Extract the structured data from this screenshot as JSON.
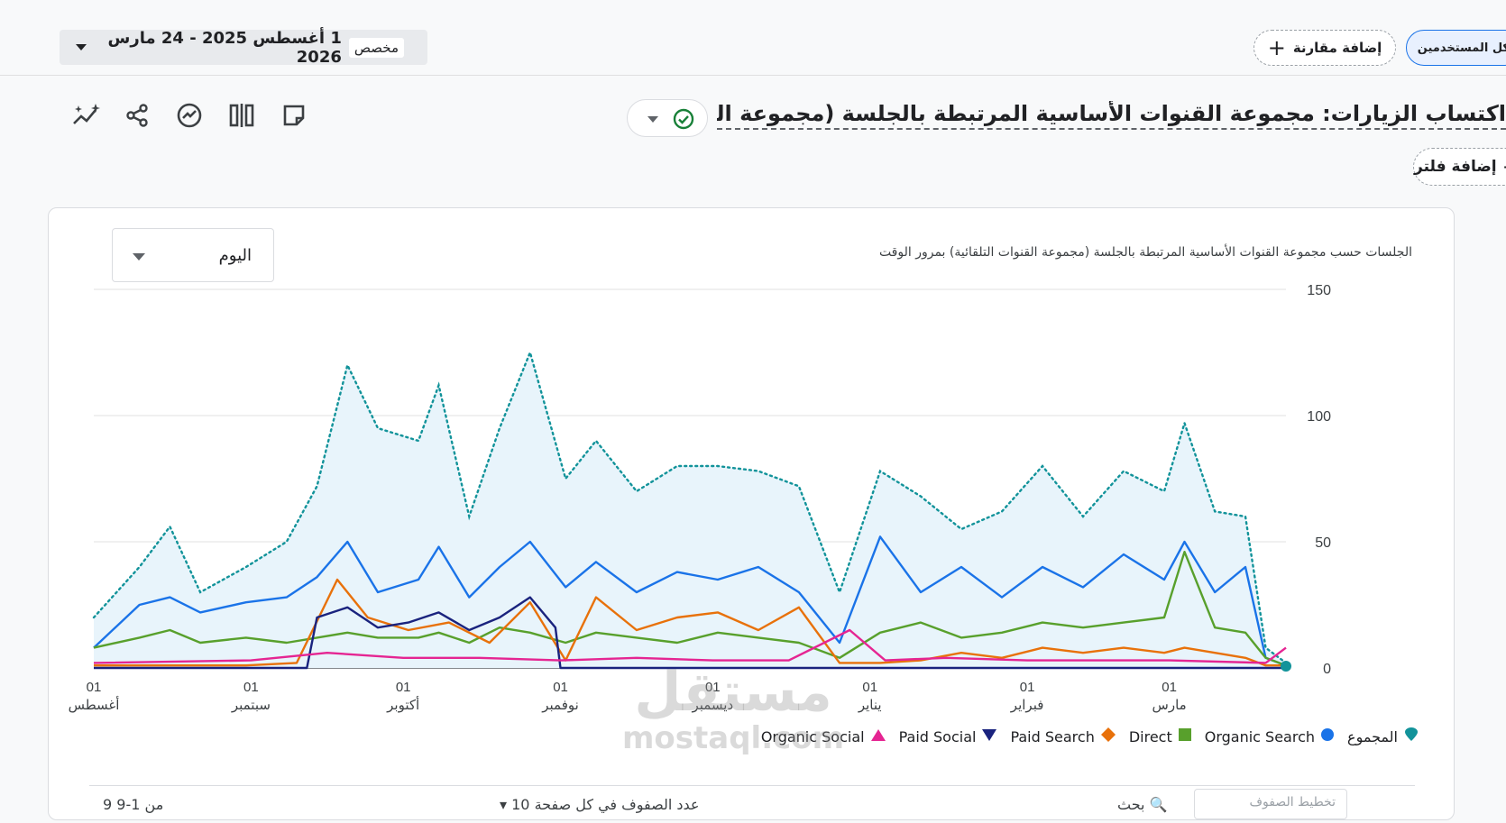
{
  "header": {
    "date_custom": "مخصص",
    "date_range": "1 أغسطس 2025 - 24 مارس 2026",
    "compare_label": "إضافة مقارنة",
    "audience_label": "كل المستخدمين"
  },
  "page": {
    "title": "اكتساب الزيارات: مجموعة القنوات الأساسية المرتبطة بالجلسة (مجموعة القنوات التلقائية)",
    "add_filter_label": "إضافة فلتر"
  },
  "chart_panel": {
    "granularity": "اليوم",
    "title": "الجلسات حسب مجموعة القنوات الأساسية المرتبطة بالجلسة (مجموعة القنوات التلقائية) بمرور الوقت"
  },
  "chart_data": {
    "type": "line",
    "title": "الجلسات حسب مجموعة القنوات الأساسية المرتبطة بالجلسة (مجموعة القنوات التلقائية) بمرور الوقت",
    "ylim": [
      0,
      150
    ],
    "y_ticks": [
      "0",
      "50",
      "100",
      "150"
    ],
    "x_ticks": [
      {
        "day": "01",
        "month": "أغسطس",
        "date": "2025-08-01"
      },
      {
        "day": "01",
        "month": "سبتمبر",
        "date": "2025-09-01"
      },
      {
        "day": "01",
        "month": "أكتوبر",
        "date": "2025-10-01"
      },
      {
        "day": "01",
        "month": "نوفمبر",
        "date": "2025-11-01"
      },
      {
        "day": "01",
        "month": "ديسمبر",
        "date": "2025-12-01"
      },
      {
        "day": "01",
        "month": "يناير",
        "date": "2026-01-01"
      },
      {
        "day": "01",
        "month": "فبراير",
        "date": "2026-02-01"
      },
      {
        "day": "01",
        "month": "مارس",
        "date": "2026-03-01"
      }
    ],
    "x_range": [
      "2025-08-01",
      "2026-03-24"
    ],
    "grid": true,
    "legend_position": "bottom",
    "series": [
      {
        "name": "المجموع",
        "color": "#12939a",
        "style": "dotted-area",
        "points": [
          [
            "2025-08-01",
            20
          ],
          [
            "2025-08-10",
            40
          ],
          [
            "2025-08-16",
            56
          ],
          [
            "2025-08-22",
            30
          ],
          [
            "2025-08-31",
            40
          ],
          [
            "2025-09-08",
            50
          ],
          [
            "2025-09-14",
            72
          ],
          [
            "2025-09-20",
            120
          ],
          [
            "2025-09-26",
            95
          ],
          [
            "2025-10-04",
            90
          ],
          [
            "2025-10-08",
            112
          ],
          [
            "2025-10-14",
            60
          ],
          [
            "2025-10-20",
            95
          ],
          [
            "2025-10-26",
            125
          ],
          [
            "2025-11-02",
            75
          ],
          [
            "2025-11-08",
            90
          ],
          [
            "2025-11-16",
            70
          ],
          [
            "2025-11-24",
            80
          ],
          [
            "2025-12-02",
            80
          ],
          [
            "2025-12-10",
            78
          ],
          [
            "2025-12-18",
            72
          ],
          [
            "2025-12-26",
            30
          ],
          [
            "2026-01-03",
            78
          ],
          [
            "2026-01-11",
            68
          ],
          [
            "2026-01-19",
            55
          ],
          [
            "2026-01-27",
            62
          ],
          [
            "2026-02-04",
            80
          ],
          [
            "2026-02-12",
            60
          ],
          [
            "2026-02-20",
            78
          ],
          [
            "2026-02-28",
            70
          ],
          [
            "2026-03-04",
            97
          ],
          [
            "2026-03-10",
            62
          ],
          [
            "2026-03-16",
            60
          ],
          [
            "2026-03-20",
            8
          ],
          [
            "2026-03-24",
            2
          ]
        ]
      },
      {
        "name": "Organic Search",
        "color": "#1a73e8",
        "style": "solid",
        "points": [
          [
            "2025-08-01",
            8
          ],
          [
            "2025-08-10",
            25
          ],
          [
            "2025-08-16",
            28
          ],
          [
            "2025-08-22",
            22
          ],
          [
            "2025-08-31",
            26
          ],
          [
            "2025-09-08",
            28
          ],
          [
            "2025-09-14",
            36
          ],
          [
            "2025-09-20",
            50
          ],
          [
            "2025-09-26",
            30
          ],
          [
            "2025-10-04",
            35
          ],
          [
            "2025-10-08",
            48
          ],
          [
            "2025-10-14",
            28
          ],
          [
            "2025-10-20",
            40
          ],
          [
            "2025-10-26",
            50
          ],
          [
            "2025-11-02",
            32
          ],
          [
            "2025-11-08",
            42
          ],
          [
            "2025-11-16",
            30
          ],
          [
            "2025-11-24",
            38
          ],
          [
            "2025-12-02",
            35
          ],
          [
            "2025-12-10",
            40
          ],
          [
            "2025-12-18",
            30
          ],
          [
            "2025-12-26",
            10
          ],
          [
            "2026-01-03",
            52
          ],
          [
            "2026-01-11",
            30
          ],
          [
            "2026-01-19",
            40
          ],
          [
            "2026-01-27",
            28
          ],
          [
            "2026-02-04",
            40
          ],
          [
            "2026-02-12",
            32
          ],
          [
            "2026-02-20",
            45
          ],
          [
            "2026-02-28",
            35
          ],
          [
            "2026-03-04",
            50
          ],
          [
            "2026-03-10",
            30
          ],
          [
            "2026-03-16",
            40
          ],
          [
            "2026-03-20",
            4
          ],
          [
            "2026-03-24",
            1
          ]
        ]
      },
      {
        "name": "Direct",
        "color": "#58a02c",
        "style": "solid",
        "points": [
          [
            "2025-08-01",
            8
          ],
          [
            "2025-08-10",
            12
          ],
          [
            "2025-08-16",
            15
          ],
          [
            "2025-08-22",
            10
          ],
          [
            "2025-08-31",
            12
          ],
          [
            "2025-09-08",
            10
          ],
          [
            "2025-09-14",
            12
          ],
          [
            "2025-09-20",
            14
          ],
          [
            "2025-09-26",
            12
          ],
          [
            "2025-10-04",
            12
          ],
          [
            "2025-10-08",
            14
          ],
          [
            "2025-10-14",
            10
          ],
          [
            "2025-10-20",
            16
          ],
          [
            "2025-10-26",
            14
          ],
          [
            "2025-11-02",
            10
          ],
          [
            "2025-11-08",
            14
          ],
          [
            "2025-11-16",
            12
          ],
          [
            "2025-11-24",
            10
          ],
          [
            "2025-12-02",
            14
          ],
          [
            "2025-12-10",
            12
          ],
          [
            "2025-12-18",
            10
          ],
          [
            "2025-12-26",
            4
          ],
          [
            "2026-01-03",
            14
          ],
          [
            "2026-01-11",
            18
          ],
          [
            "2026-01-19",
            12
          ],
          [
            "2026-01-27",
            14
          ],
          [
            "2026-02-04",
            18
          ],
          [
            "2026-02-12",
            16
          ],
          [
            "2026-02-20",
            18
          ],
          [
            "2026-02-28",
            20
          ],
          [
            "2026-03-04",
            46
          ],
          [
            "2026-03-10",
            16
          ],
          [
            "2026-03-16",
            14
          ],
          [
            "2026-03-20",
            4
          ],
          [
            "2026-03-24",
            1
          ]
        ]
      },
      {
        "name": "Paid Search",
        "color": "#e8710a",
        "style": "solid",
        "points": [
          [
            "2025-08-01",
            1
          ],
          [
            "2025-08-31",
            1
          ],
          [
            "2025-09-10",
            2
          ],
          [
            "2025-09-18",
            35
          ],
          [
            "2025-09-24",
            20
          ],
          [
            "2025-10-02",
            15
          ],
          [
            "2025-10-10",
            18
          ],
          [
            "2025-10-18",
            10
          ],
          [
            "2025-10-26",
            26
          ],
          [
            "2025-11-02",
            3
          ],
          [
            "2025-11-08",
            28
          ],
          [
            "2025-11-16",
            15
          ],
          [
            "2025-11-24",
            20
          ],
          [
            "2025-12-02",
            22
          ],
          [
            "2025-12-10",
            15
          ],
          [
            "2025-12-18",
            24
          ],
          [
            "2025-12-26",
            2
          ],
          [
            "2026-01-03",
            2
          ],
          [
            "2026-01-11",
            3
          ],
          [
            "2026-01-19",
            6
          ],
          [
            "2026-01-27",
            4
          ],
          [
            "2026-02-04",
            8
          ],
          [
            "2026-02-12",
            6
          ],
          [
            "2026-02-20",
            8
          ],
          [
            "2026-02-28",
            6
          ],
          [
            "2026-03-04",
            8
          ],
          [
            "2026-03-10",
            6
          ],
          [
            "2026-03-16",
            4
          ],
          [
            "2026-03-20",
            1
          ],
          [
            "2026-03-24",
            1
          ]
        ]
      },
      {
        "name": "Paid Social",
        "color": "#1a237e",
        "style": "solid",
        "points": [
          [
            "2025-08-01",
            0
          ],
          [
            "2025-09-12",
            0
          ],
          [
            "2025-09-14",
            20
          ],
          [
            "2025-09-20",
            24
          ],
          [
            "2025-09-26",
            16
          ],
          [
            "2025-10-02",
            18
          ],
          [
            "2025-10-08",
            22
          ],
          [
            "2025-10-14",
            15
          ],
          [
            "2025-10-20",
            20
          ],
          [
            "2025-10-26",
            28
          ],
          [
            "2025-10-31",
            16
          ],
          [
            "2025-11-01",
            0
          ],
          [
            "2026-03-24",
            0
          ]
        ]
      },
      {
        "name": "Organic Social",
        "color": "#e52592",
        "style": "solid",
        "points": [
          [
            "2025-08-01",
            2
          ],
          [
            "2025-09-01",
            3
          ],
          [
            "2025-09-16",
            6
          ],
          [
            "2025-10-01",
            4
          ],
          [
            "2025-10-16",
            4
          ],
          [
            "2025-11-01",
            3
          ],
          [
            "2025-11-16",
            4
          ],
          [
            "2025-12-01",
            3
          ],
          [
            "2025-12-16",
            3
          ],
          [
            "2025-12-28",
            15
          ],
          [
            "2026-01-04",
            3
          ],
          [
            "2026-01-16",
            4
          ],
          [
            "2026-02-01",
            3
          ],
          [
            "2026-02-16",
            3
          ],
          [
            "2026-03-01",
            3
          ],
          [
            "2026-03-20",
            2
          ],
          [
            "2026-03-24",
            8
          ]
        ]
      }
    ]
  },
  "legend": [
    {
      "label": "المجموع",
      "color": "#12939a",
      "shape": "drop"
    },
    {
      "label": "Organic Search",
      "color": "#1a73e8",
      "shape": "circle"
    },
    {
      "label": "Direct",
      "color": "#58a02c",
      "shape": "square"
    },
    {
      "label": "Paid Search",
      "color": "#e8710a",
      "shape": "diamond"
    },
    {
      "label": "Paid Social",
      "color": "#1a237e",
      "shape": "triangle-down"
    },
    {
      "label": "Organic Social",
      "color": "#e52592",
      "shape": "triangle-up"
    }
  ],
  "table_footer": {
    "search_label": "بحث",
    "search_placeholder": "تخطيط الصفوف",
    "rows_label": "عدد الصفوف في كل صفحة",
    "rows_value": "10",
    "page_info": "9 من 1-9"
  },
  "watermark": {
    "line1": "مستقل",
    "line2": "mostaql.com"
  }
}
